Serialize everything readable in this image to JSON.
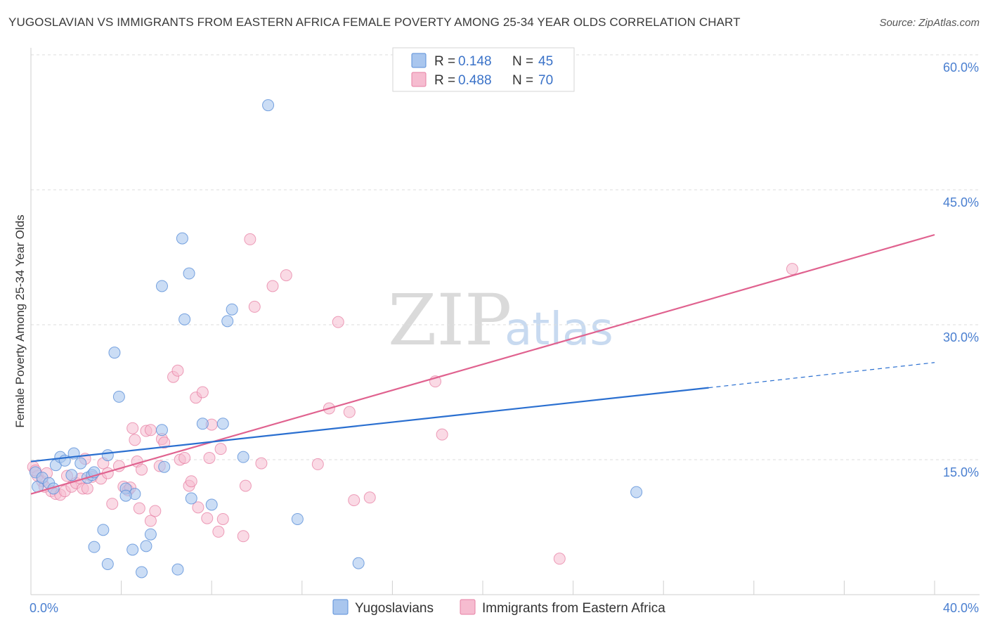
{
  "header": {
    "title": "YUGOSLAVIAN VS IMMIGRANTS FROM EASTERN AFRICA FEMALE POVERTY AMONG 25-34 YEAR OLDS CORRELATION CHART",
    "source": "Source: ZipAtlas.com"
  },
  "watermark": {
    "zip": "ZIP",
    "atlas": "atlas"
  },
  "legend": {
    "r_label": "R =",
    "n_label": "N =",
    "series": [
      {
        "r": "0.148",
        "n": "45"
      },
      {
        "r": "0.488",
        "n": "70"
      }
    ]
  },
  "bottom_legend": [
    "Yugoslavians",
    "Immigrants from Eastern Africa"
  ],
  "chart_data": {
    "type": "scatter",
    "title": "YUGOSLAVIAN VS IMMIGRANTS FROM EASTERN AFRICA FEMALE POVERTY AMONG 25-34 YEAR OLDS CORRELATION CHART",
    "xlabel": "",
    "ylabel": "Female Poverty Among 25-34 Year Olds",
    "xlim": [
      0,
      40
    ],
    "ylim": [
      0,
      60
    ],
    "x_tick_labels": [
      {
        "value": 0,
        "label": "0.0%"
      },
      {
        "value": 40,
        "label": "40.0%"
      }
    ],
    "x_minor_ticks": [
      4,
      8,
      12,
      16,
      20,
      24,
      28,
      32,
      36
    ],
    "y_tick_labels": [
      {
        "value": 15,
        "label": "15.0%"
      },
      {
        "value": 30,
        "label": "30.0%"
      },
      {
        "value": 45,
        "label": "45.0%"
      },
      {
        "value": 60,
        "label": "60.0%"
      }
    ],
    "y_gridlines": [
      15,
      30,
      45,
      60
    ],
    "colors": {
      "yugoslavians_fill": "#a9c6ee",
      "yugoslavians_stroke": "#5a8fd8",
      "yugoslavians_line": "#2a6fd0",
      "africa_fill": "#f6bcd0",
      "africa_stroke": "#e77fa3",
      "africa_line": "#e0628f"
    },
    "series": [
      {
        "name": "Yugoslavians",
        "r": 0.148,
        "n": 45,
        "trend": {
          "x0": 0,
          "y0": 14.8,
          "x1": 30,
          "y1": 23.0,
          "dash_to_x": 40,
          "dash_to_y": 25.8
        },
        "points": [
          [
            0.2,
            13.6
          ],
          [
            0.3,
            12.0
          ],
          [
            0.5,
            13.0
          ],
          [
            0.8,
            12.4
          ],
          [
            1.1,
            14.4
          ],
          [
            1.3,
            15.3
          ],
          [
            1.5,
            14.9
          ],
          [
            1.8,
            13.3
          ],
          [
            1.9,
            15.7
          ],
          [
            2.2,
            14.6
          ],
          [
            2.5,
            13.0
          ],
          [
            2.7,
            13.3
          ],
          [
            2.8,
            13.6
          ],
          [
            3.4,
            15.5
          ],
          [
            3.7,
            26.9
          ],
          [
            3.9,
            22.0
          ],
          [
            4.2,
            11.8
          ],
          [
            4.6,
            11.2
          ],
          [
            5.8,
            18.3
          ],
          [
            5.8,
            34.3
          ],
          [
            5.9,
            14.2
          ],
          [
            6.7,
            39.6
          ],
          [
            6.8,
            30.6
          ],
          [
            7.0,
            35.7
          ],
          [
            7.1,
            10.7
          ],
          [
            7.6,
            19.0
          ],
          [
            8.0,
            10.0
          ],
          [
            8.5,
            19.0
          ],
          [
            8.7,
            30.4
          ],
          [
            8.9,
            31.7
          ],
          [
            9.4,
            15.3
          ],
          [
            10.5,
            54.4
          ],
          [
            11.8,
            8.4
          ],
          [
            14.5,
            3.5
          ],
          [
            26.8,
            11.4
          ],
          [
            2.8,
            5.3
          ],
          [
            3.2,
            7.2
          ],
          [
            3.4,
            3.4
          ],
          [
            4.5,
            5.0
          ],
          [
            4.9,
            2.5
          ],
          [
            5.1,
            5.4
          ],
          [
            5.3,
            6.7
          ],
          [
            6.5,
            2.8
          ],
          [
            4.2,
            11.0
          ],
          [
            1.0,
            11.8
          ]
        ]
      },
      {
        "name": "Immigrants from Eastern Africa",
        "r": 0.488,
        "n": 70,
        "trend": {
          "x0": 0,
          "y0": 11.2,
          "x1": 40,
          "y1": 40.0
        },
        "points": [
          [
            0.1,
            14.2
          ],
          [
            0.3,
            13.2
          ],
          [
            0.5,
            12.6
          ],
          [
            0.7,
            13.5
          ],
          [
            0.9,
            11.5
          ],
          [
            1.1,
            11.2
          ],
          [
            1.3,
            11.1
          ],
          [
            1.5,
            11.5
          ],
          [
            1.6,
            13.2
          ],
          [
            1.8,
            12.0
          ],
          [
            2.0,
            12.4
          ],
          [
            2.2,
            12.9
          ],
          [
            2.3,
            11.8
          ],
          [
            2.4,
            15.1
          ],
          [
            2.5,
            11.8
          ],
          [
            2.7,
            13.1
          ],
          [
            3.1,
            12.9
          ],
          [
            3.2,
            14.6
          ],
          [
            3.4,
            13.5
          ],
          [
            3.6,
            10.1
          ],
          [
            3.9,
            14.3
          ],
          [
            4.1,
            12.0
          ],
          [
            4.3,
            11.6
          ],
          [
            4.4,
            11.9
          ],
          [
            4.5,
            18.5
          ],
          [
            4.6,
            17.2
          ],
          [
            4.7,
            14.8
          ],
          [
            4.8,
            9.6
          ],
          [
            4.9,
            13.9
          ],
          [
            5.1,
            18.2
          ],
          [
            5.3,
            18.3
          ],
          [
            5.3,
            8.2
          ],
          [
            5.5,
            9.3
          ],
          [
            5.7,
            14.3
          ],
          [
            5.8,
            17.3
          ],
          [
            5.9,
            16.9
          ],
          [
            6.3,
            24.2
          ],
          [
            6.5,
            24.9
          ],
          [
            6.6,
            15.0
          ],
          [
            6.8,
            15.2
          ],
          [
            7.0,
            12.1
          ],
          [
            7.1,
            12.6
          ],
          [
            7.3,
            21.9
          ],
          [
            7.4,
            9.7
          ],
          [
            7.6,
            22.5
          ],
          [
            7.8,
            8.5
          ],
          [
            7.9,
            15.2
          ],
          [
            8.0,
            18.9
          ],
          [
            8.3,
            7.0
          ],
          [
            8.4,
            16.2
          ],
          [
            8.5,
            8.4
          ],
          [
            9.4,
            6.5
          ],
          [
            9.5,
            12.1
          ],
          [
            9.7,
            39.5
          ],
          [
            9.9,
            32.0
          ],
          [
            10.2,
            14.6
          ],
          [
            10.7,
            34.3
          ],
          [
            11.3,
            35.5
          ],
          [
            12.7,
            14.5
          ],
          [
            13.2,
            20.7
          ],
          [
            13.6,
            30.3
          ],
          [
            14.1,
            20.3
          ],
          [
            14.3,
            10.5
          ],
          [
            15.0,
            10.8
          ],
          [
            17.9,
            23.7
          ],
          [
            18.2,
            17.8
          ],
          [
            23.4,
            4.0
          ],
          [
            33.7,
            36.2
          ],
          [
            0.2,
            13.8
          ],
          [
            0.6,
            12.0
          ]
        ]
      }
    ]
  }
}
